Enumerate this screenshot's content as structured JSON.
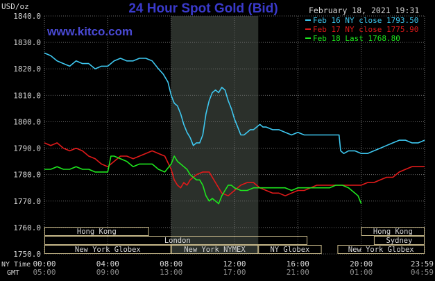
{
  "header": {
    "title": "24 Hour Spot Gold (Bid)",
    "units": "USD/oz",
    "timestamp": "February 18, 2021 19:31",
    "watermark": "www.kitco.com"
  },
  "colors": {
    "background": "#000000",
    "grid": "#6b6b6b",
    "axis_text": "#d8d8d8",
    "title": "#3a3acb",
    "watermark": "#4a4ad6",
    "feb16": "#3ec7ef",
    "feb17": "#e01a1a",
    "feb18": "#1ee61e",
    "shade": "#2b302b",
    "market_border": "#c8b98a",
    "market_text": "#d8d8d8"
  },
  "markets": [
    {
      "label": "Hong Kong",
      "start": 0,
      "end": 6.6,
      "row": 0
    },
    {
      "label": "Hong Kong",
      "start": 20,
      "end": 24,
      "row": 0
    },
    {
      "label": "London",
      "start": 0,
      "end": 16.6,
      "row": 1,
      "label_at": 8.4
    },
    {
      "label": "Sydney",
      "start": 20.8,
      "end": 24,
      "row": 1
    },
    {
      "label": "New York Globex",
      "start": 0,
      "end": 8.0,
      "row": 2
    },
    {
      "label": "New York NYMEX",
      "start": 8.0,
      "end": 13.5,
      "row": 2
    },
    {
      "label": "NY Globex",
      "start": 13.5,
      "end": 17.5,
      "row": 2
    },
    {
      "label": "New York Globex",
      "start": 18.5,
      "end": 24,
      "row": 2
    }
  ],
  "time_axis": {
    "row_labels": [
      "NY Time",
      "GMT"
    ],
    "ny_ticks": [
      "00:00",
      "04:00",
      "08:00",
      "12:00",
      "16:00",
      "20:00",
      "23:59"
    ],
    "gmt_ticks": [
      "05:00",
      "09:00",
      "13:00",
      "17:00",
      "21:00",
      "01:00",
      "04:59"
    ]
  },
  "chart_data": {
    "type": "line",
    "title": "24 Hour Spot Gold (Bid)",
    "ylabel": "USD/oz",
    "ylim": [
      1750,
      1840
    ],
    "xlim": [
      0,
      24
    ],
    "x_unit": "hours (NY Time)",
    "y_ticks": [
      1750,
      1760,
      1770,
      1780,
      1790,
      1800,
      1810,
      1820,
      1830,
      1840
    ],
    "y_tick_labels": [
      "1750.0",
      "1760.0",
      "1770.0",
      "1780.0",
      "1790.0",
      "1800.0",
      "1810.0",
      "1820.0",
      "1830.0",
      "1840.0"
    ],
    "shaded_range": [
      8.0,
      13.5
    ],
    "legend_position": "top-right",
    "grid": true,
    "series": [
      {
        "name": "Feb 16 NY close 1793.50",
        "color": "#3ec7ef",
        "points": [
          [
            0,
            1826
          ],
          [
            0.4,
            1825
          ],
          [
            0.8,
            1823
          ],
          [
            1.2,
            1822
          ],
          [
            1.6,
            1821
          ],
          [
            2.0,
            1823
          ],
          [
            2.4,
            1822
          ],
          [
            2.8,
            1822
          ],
          [
            3.2,
            1820
          ],
          [
            3.6,
            1821
          ],
          [
            4.0,
            1821
          ],
          [
            4.4,
            1823
          ],
          [
            4.8,
            1824
          ],
          [
            5.2,
            1823
          ],
          [
            5.6,
            1823
          ],
          [
            6.0,
            1824
          ],
          [
            6.4,
            1824
          ],
          [
            6.8,
            1823
          ],
          [
            7.2,
            1820
          ],
          [
            7.5,
            1818
          ],
          [
            7.8,
            1815
          ],
          [
            8.0,
            1810
          ],
          [
            8.2,
            1807
          ],
          [
            8.4,
            1806
          ],
          [
            8.6,
            1803
          ],
          [
            8.8,
            1799
          ],
          [
            9.0,
            1796
          ],
          [
            9.2,
            1794
          ],
          [
            9.4,
            1791
          ],
          [
            9.6,
            1792
          ],
          [
            9.8,
            1792
          ],
          [
            10.0,
            1795
          ],
          [
            10.2,
            1803
          ],
          [
            10.4,
            1808
          ],
          [
            10.6,
            1811
          ],
          [
            10.8,
            1812
          ],
          [
            11.0,
            1811
          ],
          [
            11.2,
            1813
          ],
          [
            11.4,
            1812
          ],
          [
            11.6,
            1808
          ],
          [
            11.8,
            1805
          ],
          [
            12.0,
            1801
          ],
          [
            12.2,
            1798
          ],
          [
            12.4,
            1795
          ],
          [
            12.6,
            1795
          ],
          [
            12.8,
            1796
          ],
          [
            13.0,
            1797
          ],
          [
            13.2,
            1797
          ],
          [
            13.4,
            1798
          ],
          [
            13.6,
            1799
          ],
          [
            13.8,
            1798
          ],
          [
            14.0,
            1798
          ],
          [
            14.4,
            1797
          ],
          [
            14.8,
            1797
          ],
          [
            15.2,
            1796
          ],
          [
            15.6,
            1795
          ],
          [
            16.0,
            1796
          ],
          [
            16.4,
            1795
          ],
          [
            16.8,
            1795
          ],
          [
            17.2,
            1795
          ],
          [
            17.6,
            1795
          ],
          [
            18.0,
            1795
          ],
          [
            18.4,
            1795
          ],
          [
            18.6,
            1795
          ],
          [
            18.7,
            1789
          ],
          [
            18.9,
            1788
          ],
          [
            19.2,
            1789
          ],
          [
            19.6,
            1789
          ],
          [
            20.0,
            1788
          ],
          [
            20.4,
            1788
          ],
          [
            20.8,
            1789
          ],
          [
            21.2,
            1790
          ],
          [
            21.6,
            1791
          ],
          [
            22.0,
            1792
          ],
          [
            22.4,
            1793
          ],
          [
            22.8,
            1793
          ],
          [
            23.2,
            1792
          ],
          [
            23.6,
            1792
          ],
          [
            24.0,
            1793
          ]
        ]
      },
      {
        "name": "Feb 17 NY close 1775.90",
        "color": "#e01a1a",
        "points": [
          [
            0,
            1792
          ],
          [
            0.4,
            1791
          ],
          [
            0.8,
            1792
          ],
          [
            1.2,
            1790
          ],
          [
            1.6,
            1789
          ],
          [
            2.0,
            1790
          ],
          [
            2.4,
            1789
          ],
          [
            2.8,
            1787
          ],
          [
            3.2,
            1786
          ],
          [
            3.6,
            1784
          ],
          [
            4.0,
            1783
          ],
          [
            4.4,
            1785
          ],
          [
            4.8,
            1787
          ],
          [
            5.2,
            1787
          ],
          [
            5.6,
            1786
          ],
          [
            6.0,
            1787
          ],
          [
            6.4,
            1788
          ],
          [
            6.8,
            1789
          ],
          [
            7.2,
            1788
          ],
          [
            7.6,
            1787
          ],
          [
            8.0,
            1782
          ],
          [
            8.2,
            1778
          ],
          [
            8.4,
            1776
          ],
          [
            8.6,
            1775
          ],
          [
            8.8,
            1777
          ],
          [
            9.0,
            1776
          ],
          [
            9.2,
            1778
          ],
          [
            9.6,
            1780
          ],
          [
            10.0,
            1781
          ],
          [
            10.4,
            1781
          ],
          [
            10.8,
            1777
          ],
          [
            11.2,
            1773
          ],
          [
            11.6,
            1772
          ],
          [
            12.0,
            1774
          ],
          [
            12.4,
            1776
          ],
          [
            12.8,
            1777
          ],
          [
            13.2,
            1777
          ],
          [
            13.6,
            1775
          ],
          [
            14.0,
            1774
          ],
          [
            14.4,
            1773
          ],
          [
            14.8,
            1773
          ],
          [
            15.2,
            1772
          ],
          [
            15.6,
            1773
          ],
          [
            16.0,
            1774
          ],
          [
            16.4,
            1774
          ],
          [
            16.8,
            1775
          ],
          [
            17.2,
            1776
          ],
          [
            17.6,
            1776
          ],
          [
            18.0,
            1776
          ],
          [
            18.4,
            1776
          ],
          [
            18.8,
            1776
          ],
          [
            19.2,
            1776
          ],
          [
            19.6,
            1776
          ],
          [
            20.0,
            1776
          ],
          [
            20.4,
            1777
          ],
          [
            20.8,
            1777
          ],
          [
            21.2,
            1778
          ],
          [
            21.6,
            1779
          ],
          [
            22.0,
            1779
          ],
          [
            22.4,
            1781
          ],
          [
            22.8,
            1782
          ],
          [
            23.2,
            1783
          ],
          [
            23.6,
            1783
          ],
          [
            24.0,
            1783
          ]
        ]
      },
      {
        "name": "Feb 18 Last 1768.80",
        "color": "#1ee61e",
        "points": [
          [
            0,
            1782
          ],
          [
            0.4,
            1782
          ],
          [
            0.8,
            1783
          ],
          [
            1.2,
            1782
          ],
          [
            1.6,
            1782
          ],
          [
            2.0,
            1783
          ],
          [
            2.4,
            1782
          ],
          [
            2.8,
            1782
          ],
          [
            3.2,
            1781
          ],
          [
            3.6,
            1781
          ],
          [
            4.0,
            1781
          ],
          [
            4.2,
            1787
          ],
          [
            4.4,
            1787
          ],
          [
            4.8,
            1786
          ],
          [
            5.2,
            1785
          ],
          [
            5.6,
            1783
          ],
          [
            6.0,
            1784
          ],
          [
            6.4,
            1784
          ],
          [
            6.8,
            1784
          ],
          [
            7.2,
            1782
          ],
          [
            7.6,
            1781
          ],
          [
            8.0,
            1784
          ],
          [
            8.2,
            1787
          ],
          [
            8.4,
            1785
          ],
          [
            8.6,
            1784
          ],
          [
            8.8,
            1783
          ],
          [
            9.0,
            1782
          ],
          [
            9.2,
            1780
          ],
          [
            9.4,
            1779
          ],
          [
            9.6,
            1778
          ],
          [
            9.8,
            1778
          ],
          [
            10.0,
            1776
          ],
          [
            10.2,
            1772
          ],
          [
            10.4,
            1770
          ],
          [
            10.6,
            1771
          ],
          [
            10.8,
            1770
          ],
          [
            11.0,
            1769
          ],
          [
            11.2,
            1772
          ],
          [
            11.4,
            1774
          ],
          [
            11.6,
            1776
          ],
          [
            11.8,
            1776
          ],
          [
            12.0,
            1775
          ],
          [
            12.4,
            1774
          ],
          [
            12.8,
            1774
          ],
          [
            13.2,
            1775
          ],
          [
            13.6,
            1775
          ],
          [
            14.0,
            1775
          ],
          [
            14.4,
            1775
          ],
          [
            14.8,
            1775
          ],
          [
            15.2,
            1775
          ],
          [
            15.6,
            1774
          ],
          [
            16.0,
            1775
          ],
          [
            16.4,
            1775
          ],
          [
            16.8,
            1775
          ],
          [
            17.2,
            1775
          ],
          [
            17.6,
            1775
          ],
          [
            18.0,
            1775
          ],
          [
            18.4,
            1776
          ],
          [
            18.8,
            1776
          ],
          [
            19.2,
            1775
          ],
          [
            19.6,
            1773
          ],
          [
            19.8,
            1772
          ],
          [
            20.0,
            1769
          ]
        ]
      }
    ]
  }
}
